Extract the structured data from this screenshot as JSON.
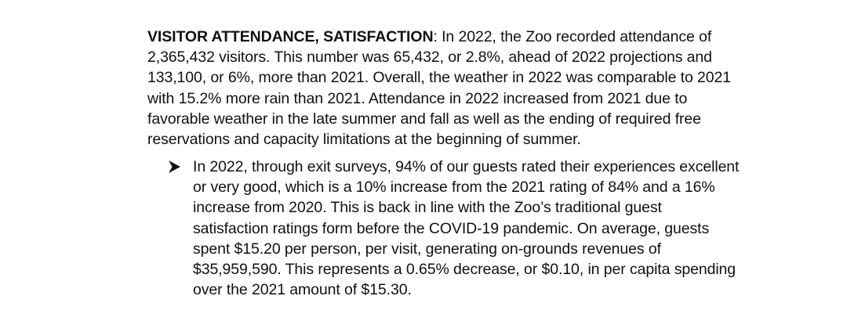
{
  "section": {
    "heading": "VISITOR ATTENDANCE, SATISFACTION",
    "lines": [
      ": In 2022, the Zoo recorded attendance of",
      "2,365,432 visitors.  This number was 65,432, or 2.8%, ahead of 2022 projections and",
      "133,100, or 6%, more than 2021. Overall, the weather in 2022 was comparable to 2021",
      "with 15.2% more rain than 2021. Attendance in 2022 increased from 2021 due to",
      "favorable weather in the late summer and fall as well as the ending of required free",
      "reservations and capacity limitations at the beginning of summer."
    ]
  },
  "bullet": {
    "marker_icon": "arrow-bullet-icon",
    "lines": [
      "In 2022, through exit surveys, 94% of our guests rated their experiences excellent",
      "or very good, which is a 10% increase from the 2021 rating of 84% and a 16%",
      "increase from 2020.  This is back in line with the Zoo’s traditional guest",
      "satisfaction ratings form before the COVID-19 pandemic. On average, guests",
      "spent $15.20 per person, per visit, generating on-grounds revenues of",
      "$35,959,590.  This represents a 0.65% decrease, or $0.10, in per capita spending",
      "over the 2021 amount of $15.30."
    ]
  }
}
